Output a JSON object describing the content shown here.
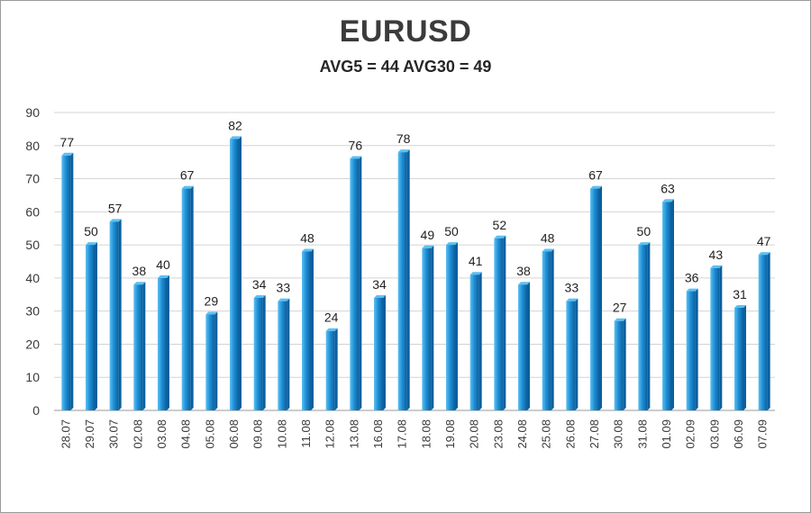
{
  "chart_data": {
    "type": "bar",
    "title": "EURUSD",
    "subtitle": "AVG5 = 44 AVG30 = 49",
    "categories": [
      "28.07",
      "29.07",
      "30.07",
      "02.08",
      "03.08",
      "04.08",
      "05.08",
      "06.08",
      "09.08",
      "10.08",
      "11.08",
      "12.08",
      "13.08",
      "16.08",
      "17.08",
      "18.08",
      "19.08",
      "20.08",
      "23.08",
      "24.08",
      "25.08",
      "26.08",
      "27.08",
      "30.08",
      "31.08",
      "01.09",
      "02.09",
      "03.09",
      "06.09",
      "07.09"
    ],
    "values": [
      77,
      50,
      57,
      38,
      40,
      67,
      29,
      82,
      34,
      33,
      48,
      24,
      76,
      34,
      78,
      49,
      50,
      41,
      52,
      38,
      48,
      33,
      67,
      27,
      50,
      63,
      36,
      43,
      31,
      47
    ],
    "ylim": [
      0,
      90
    ],
    "yticks": [
      0,
      10,
      20,
      30,
      40,
      50,
      60,
      70,
      80,
      90
    ],
    "grid": true,
    "legend": "none",
    "xlabel": "",
    "ylabel": "",
    "colors": {
      "bar_light": "#5cc0f2",
      "bar_mid": "#1f8fd6",
      "bar_dark": "#0a5f9e",
      "grid": "#d4d4d4",
      "axis": "#9a9a9a"
    }
  }
}
